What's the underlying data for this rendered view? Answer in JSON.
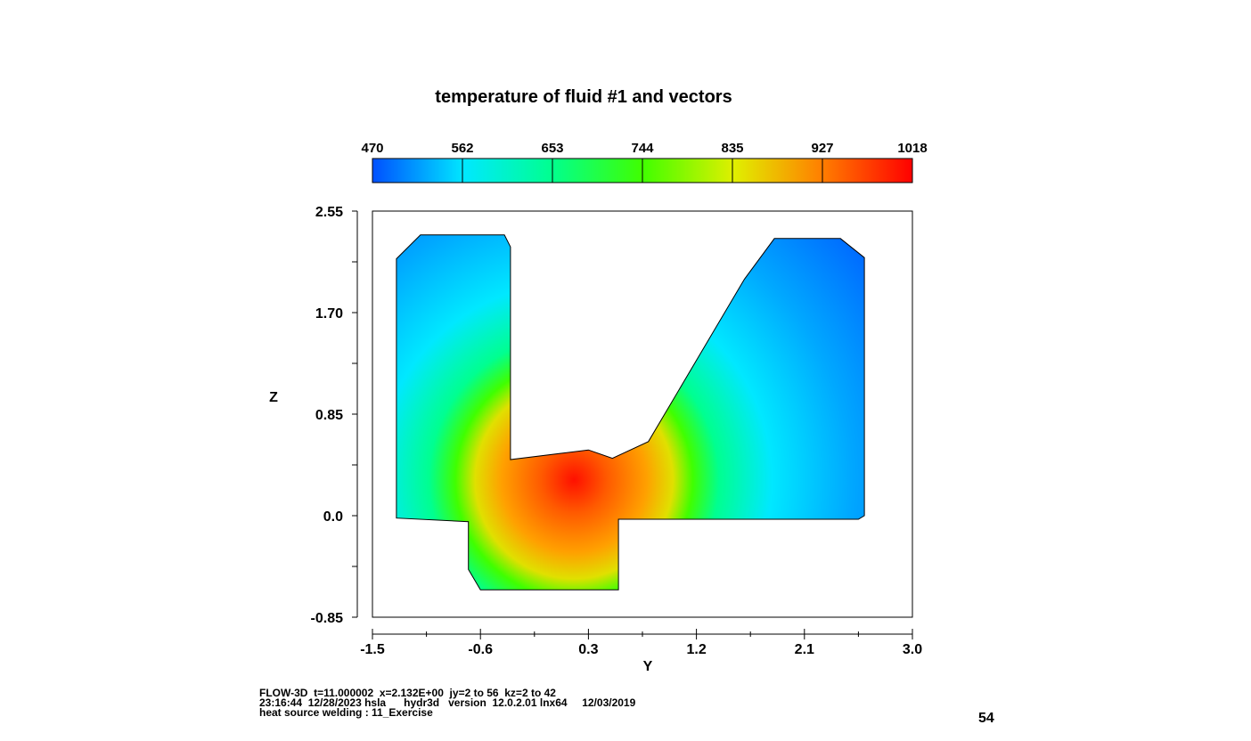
{
  "chart_data": {
    "type": "heatmap",
    "title": "temperature of fluid #1 and vectors",
    "xlabel": "Y",
    "ylabel": "Z",
    "xlim": [
      -1.5,
      3.0
    ],
    "ylim": [
      -0.85,
      2.55
    ],
    "x_ticks": [
      "-1.5",
      "-0.6",
      "0.3",
      "1.2",
      "2.1",
      "3.0"
    ],
    "y_ticks": [
      "2.55",
      "1.70",
      "0.85",
      "0.0",
      "-0.85"
    ],
    "colorbar": {
      "labels": [
        "470",
        "562",
        "653",
        "744",
        "835",
        "927",
        "1018"
      ],
      "colors": [
        "#0050ff",
        "#00e8ff",
        "#00ff90",
        "#40ff00",
        "#e0ef00",
        "#ff8000",
        "#ff0000"
      ]
    },
    "field": {
      "peak_temperature": 1018,
      "peak_location": [
        0.18,
        0.3
      ],
      "min_temperature": 470
    },
    "domain_outline": [
      [
        -1.3,
        0.0
      ],
      [
        -1.3,
        2.15
      ],
      [
        -1.1,
        2.35
      ],
      [
        -0.4,
        2.35
      ],
      [
        -0.35,
        2.25
      ],
      [
        -0.35,
        0.47
      ],
      [
        0.3,
        0.55
      ],
      [
        0.5,
        0.48
      ],
      [
        0.8,
        0.62
      ],
      [
        1.6,
        1.98
      ],
      [
        1.85,
        2.32
      ],
      [
        2.4,
        2.32
      ],
      [
        2.6,
        2.16
      ],
      [
        2.6,
        0.0
      ],
      [
        2.55,
        -0.03
      ],
      [
        0.55,
        -0.03
      ],
      [
        0.55,
        -0.62
      ],
      [
        -0.6,
        -0.62
      ],
      [
        -0.7,
        -0.45
      ],
      [
        -0.7,
        -0.05
      ],
      [
        -1.3,
        -0.02
      ]
    ]
  },
  "footer": {
    "line1": "FLOW-3D  t=11.000002  x=2.132E+00  jy=2 to 56  kz=2 to 42",
    "line2": "23:16:44  12/28/2023 hsla      hydr3d   version  12.0.2.01 lnx64     12/03/2019",
    "line3": "heat source welding : 11_Exercise"
  },
  "page_number": "54"
}
